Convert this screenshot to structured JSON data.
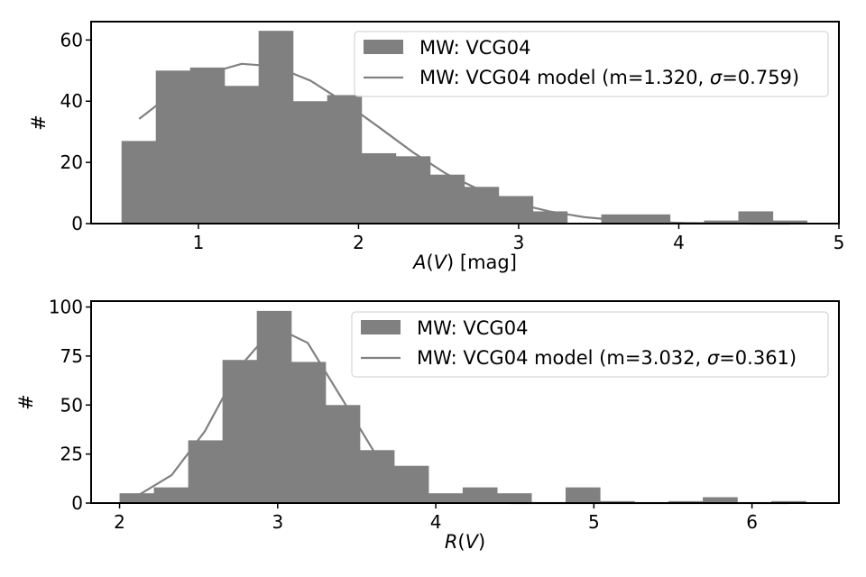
{
  "chart_data": [
    {
      "type": "bar",
      "xlabel": "A(V) [mag]",
      "ylabel": "#",
      "xlim": [
        0.33,
        5.0
      ],
      "ylim": [
        0,
        66
      ],
      "xticks": [
        1,
        2,
        3,
        4,
        5
      ],
      "yticks": [
        0,
        20,
        40,
        60
      ],
      "grid": false,
      "legend_position": "top-right",
      "legend": [
        "MW: VCG04",
        "MW: VCG04 model (m=1.320, σ=0.759)"
      ],
      "bin_edges": [
        0.52,
        0.734,
        0.948,
        1.162,
        1.376,
        1.59,
        1.804,
        2.018,
        2.232,
        2.446,
        2.66,
        2.874,
        3.088,
        3.302,
        3.516,
        3.73,
        3.944,
        4.158,
        4.372,
        4.586,
        4.8
      ],
      "series": [
        {
          "name": "MW: VCG04",
          "type": "histogram",
          "color": "#808080",
          "values": [
            27,
            50,
            51,
            45,
            63,
            40,
            42,
            23,
            22,
            16,
            12,
            9,
            4,
            0,
            3,
            3,
            0,
            1,
            4,
            1
          ]
        },
        {
          "name": "MW: VCG04 model (m=1.320, σ=0.759)",
          "type": "line",
          "color": "#808080",
          "x": [
            0.63,
            0.84,
            1.06,
            1.27,
            1.48,
            1.7,
            1.91,
            2.13,
            2.34,
            2.55,
            2.77,
            2.98,
            3.2,
            3.41,
            3.62,
            3.84,
            4.05,
            4.27,
            4.48,
            4.69
          ],
          "y": [
            34.2,
            42.7,
            49.1,
            52.2,
            51.4,
            46.7,
            39.7,
            31.4,
            23.3,
            16.2,
            10.7,
            6.6,
            3.9,
            2.1,
            1.1,
            0.5,
            0.2,
            0.1,
            0.0,
            0.0
          ]
        }
      ]
    },
    {
      "type": "bar",
      "xlabel": "R(V)",
      "ylabel": "#",
      "xlim": [
        1.82,
        6.55
      ],
      "ylim": [
        0,
        103
      ],
      "xticks": [
        2,
        3,
        4,
        5,
        6
      ],
      "yticks": [
        0,
        25,
        50,
        75,
        100
      ],
      "grid": false,
      "legend_position": "top-right",
      "legend": [
        "MW: VCG04",
        "MW: VCG04 model (m=3.032, σ=0.361)"
      ],
      "bin_edges": [
        2.0,
        2.217,
        2.434,
        2.651,
        2.868,
        3.085,
        3.302,
        3.519,
        3.736,
        3.953,
        4.17,
        4.387,
        4.604,
        4.821,
        5.038,
        5.255,
        5.472,
        5.689,
        5.906,
        6.123,
        6.34
      ],
      "series": [
        {
          "name": "MW: VCG04",
          "type": "histogram",
          "color": "#808080",
          "values": [
            5,
            8,
            32,
            73,
            98,
            72,
            50,
            27,
            19,
            5,
            8,
            5,
            0,
            8,
            1,
            0,
            1,
            3,
            0,
            1
          ]
        },
        {
          "name": "MW: VCG04 model (m=3.032, σ=0.361)",
          "type": "line",
          "color": "#808080",
          "x": [
            2.11,
            2.33,
            2.54,
            2.76,
            2.98,
            3.19,
            3.41,
            3.63,
            3.84,
            4.06,
            4.28,
            4.5,
            4.71,
            4.93,
            5.15,
            5.36,
            5.58,
            5.8,
            6.01,
            6.23
          ],
          "y": [
            3.6,
            14.3,
            36.7,
            69.5,
            89.9,
            81.7,
            52.8,
            23.5,
            7.1,
            1.5,
            0.2,
            0.0,
            0.0,
            0.0,
            0.0,
            0.0,
            0.0,
            0.0,
            0.0,
            0.0
          ]
        }
      ]
    }
  ]
}
